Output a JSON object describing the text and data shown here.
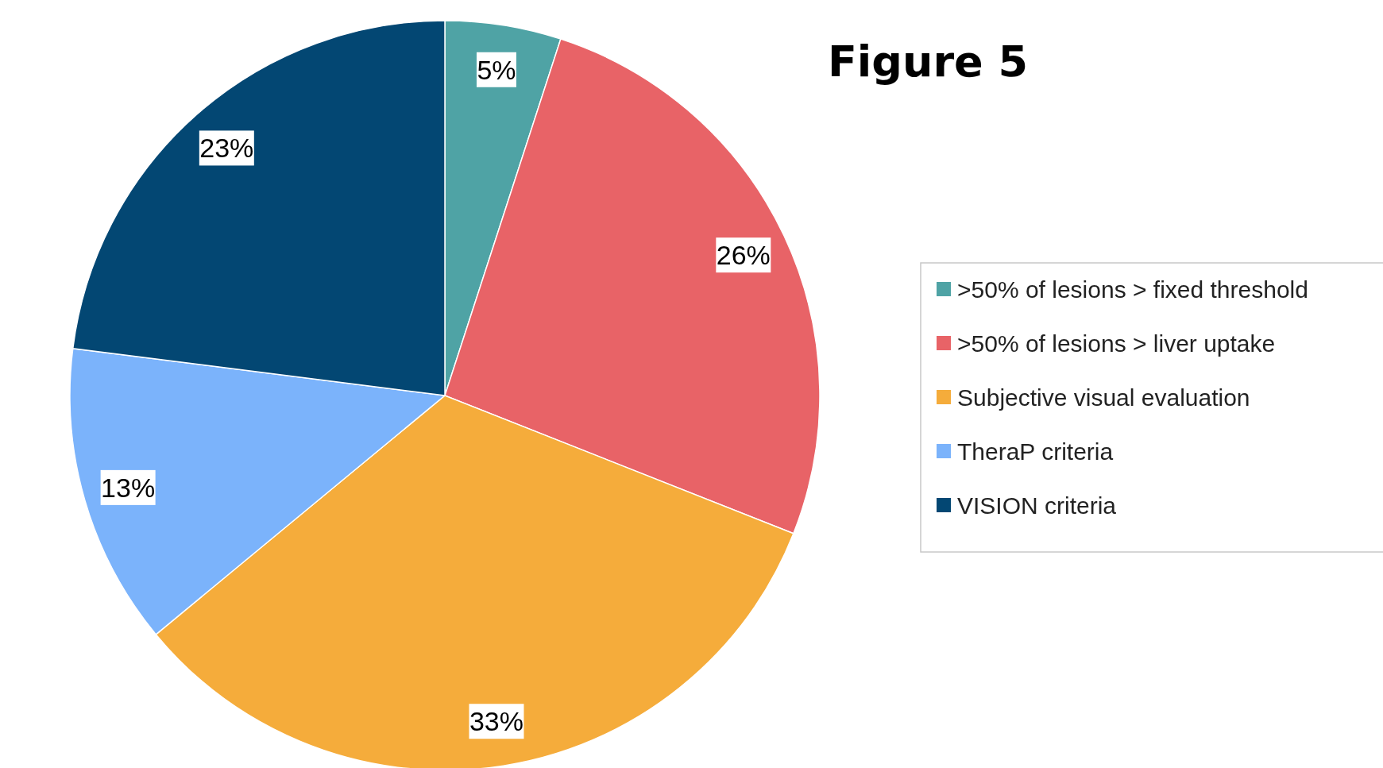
{
  "chart_data": {
    "type": "pie",
    "title": "Figure 5",
    "categories": [
      ">50% of lesions > fixed threshold",
      ">50% of lesions > liver uptake",
      "Subjective visual evaluation",
      "TheraP criteria",
      "VISION criteria"
    ],
    "values": [
      5,
      26,
      33,
      13,
      23
    ],
    "value_labels": [
      "5%",
      "26%",
      "33%",
      "13%",
      "23%"
    ],
    "colors": [
      "#4fa3a5",
      "#e86367",
      "#f5ac3b",
      "#7bb3fb",
      "#034773"
    ],
    "legend": "right"
  }
}
